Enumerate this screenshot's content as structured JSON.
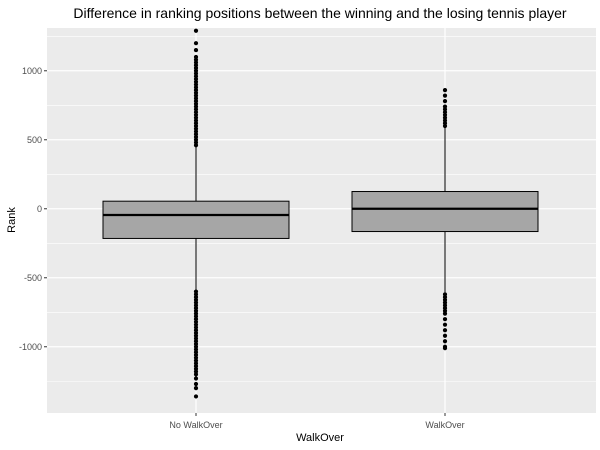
{
  "chart_data": {
    "type": "boxplot",
    "title": "Difference in ranking positions between the winning and the losing tennis player",
    "xlabel": "WalkOver",
    "ylabel": "Rank",
    "ylim": [
      -1480,
      1310
    ],
    "yticks": [
      1000,
      500,
      0,
      -500,
      -1000
    ],
    "ytick_labels": [
      "1000",
      "500",
      "0",
      "-500",
      "-1000"
    ],
    "categories": [
      "No WalkOver",
      "WalkOver"
    ],
    "boxes": [
      {
        "name": "No WalkOver",
        "q1": -215,
        "median": -45,
        "q3": 55,
        "whisker_low": -590,
        "whisker_high": 455,
        "outliers_high": [
          460,
          480,
          500,
          520,
          540,
          560,
          580,
          600,
          620,
          640,
          660,
          680,
          700,
          720,
          740,
          760,
          780,
          800,
          820,
          840,
          860,
          880,
          900,
          920,
          940,
          960,
          980,
          1000,
          1020,
          1040,
          1060,
          1080,
          1100,
          1150,
          1200,
          1290
        ],
        "outliers_low": [
          -600,
          -620,
          -640,
          -660,
          -680,
          -700,
          -720,
          -740,
          -760,
          -780,
          -800,
          -820,
          -840,
          -860,
          -880,
          -900,
          -920,
          -940,
          -960,
          -980,
          -1000,
          -1020,
          -1040,
          -1060,
          -1080,
          -1100,
          -1120,
          -1140,
          -1160,
          -1180,
          -1200,
          -1230,
          -1270,
          -1300,
          -1360
        ]
      },
      {
        "name": "WalkOver",
        "q1": -165,
        "median": 0,
        "q3": 125,
        "whisker_low": -605,
        "whisker_high": 590,
        "outliers_high": [
          600,
          620,
          640,
          660,
          680,
          700,
          720,
          740,
          780,
          820,
          860
        ],
        "outliers_low": [
          -620,
          -640,
          -660,
          -680,
          -700,
          -720,
          -740,
          -760,
          -800,
          -840,
          -880,
          -920,
          -960,
          -1000,
          -1010
        ]
      }
    ],
    "box_fill": "#a6a6a6",
    "panel_background": "#ebebeb",
    "grid_color": "#ffffff"
  }
}
